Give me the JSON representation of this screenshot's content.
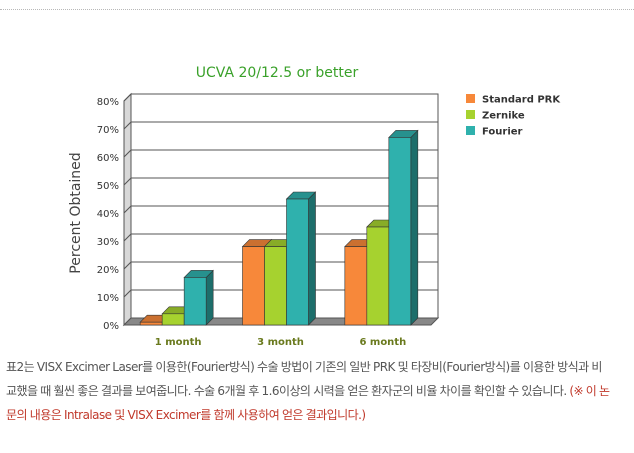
{
  "chart_data": {
    "type": "bar",
    "title": "UCVA 20/12.5 or better",
    "ylabel": "Percent Obtained",
    "xlabel": "",
    "categories": [
      "1 month",
      "3 month",
      "6 month"
    ],
    "series": [
      {
        "name": "Standard PRK",
        "values": [
          1,
          28,
          28
        ],
        "color": "#f7883a"
      },
      {
        "name": "Zernike",
        "values": [
          4,
          28,
          35
        ],
        "color": "#a6d22f"
      },
      {
        "name": "Fourier",
        "values": [
          17,
          45,
          67
        ],
        "color": "#2fb1ad"
      }
    ],
    "ylim": [
      0,
      80
    ],
    "yticks": [
      "0%",
      "10%",
      "20%",
      "30%",
      "40%",
      "50%",
      "60%",
      "70%",
      "80%"
    ],
    "grid": true,
    "legend_position": "top-right",
    "title_color": "#3aa12a",
    "category_label_color": "#6a7a1e"
  },
  "caption": {
    "main": "표2는 VISX Excimer Laser를 이용한(Fourier방식) 수술 방법이 기존의 일반 PRK 및 타장비(Fourier방식)를 이용한 방식과 비교했을 때 훨씬 좋은 결과를 보여줍니다. 수술 6개월 후 1.6이상의 시력을 얻은 환자군의 비율 차이를 확인할 수 있습니다.",
    "note": "(※ 이 논문의 내용은 Intralase 및 VISX Excimer를 함께 사용하여 얻은 결과입니다.)"
  }
}
